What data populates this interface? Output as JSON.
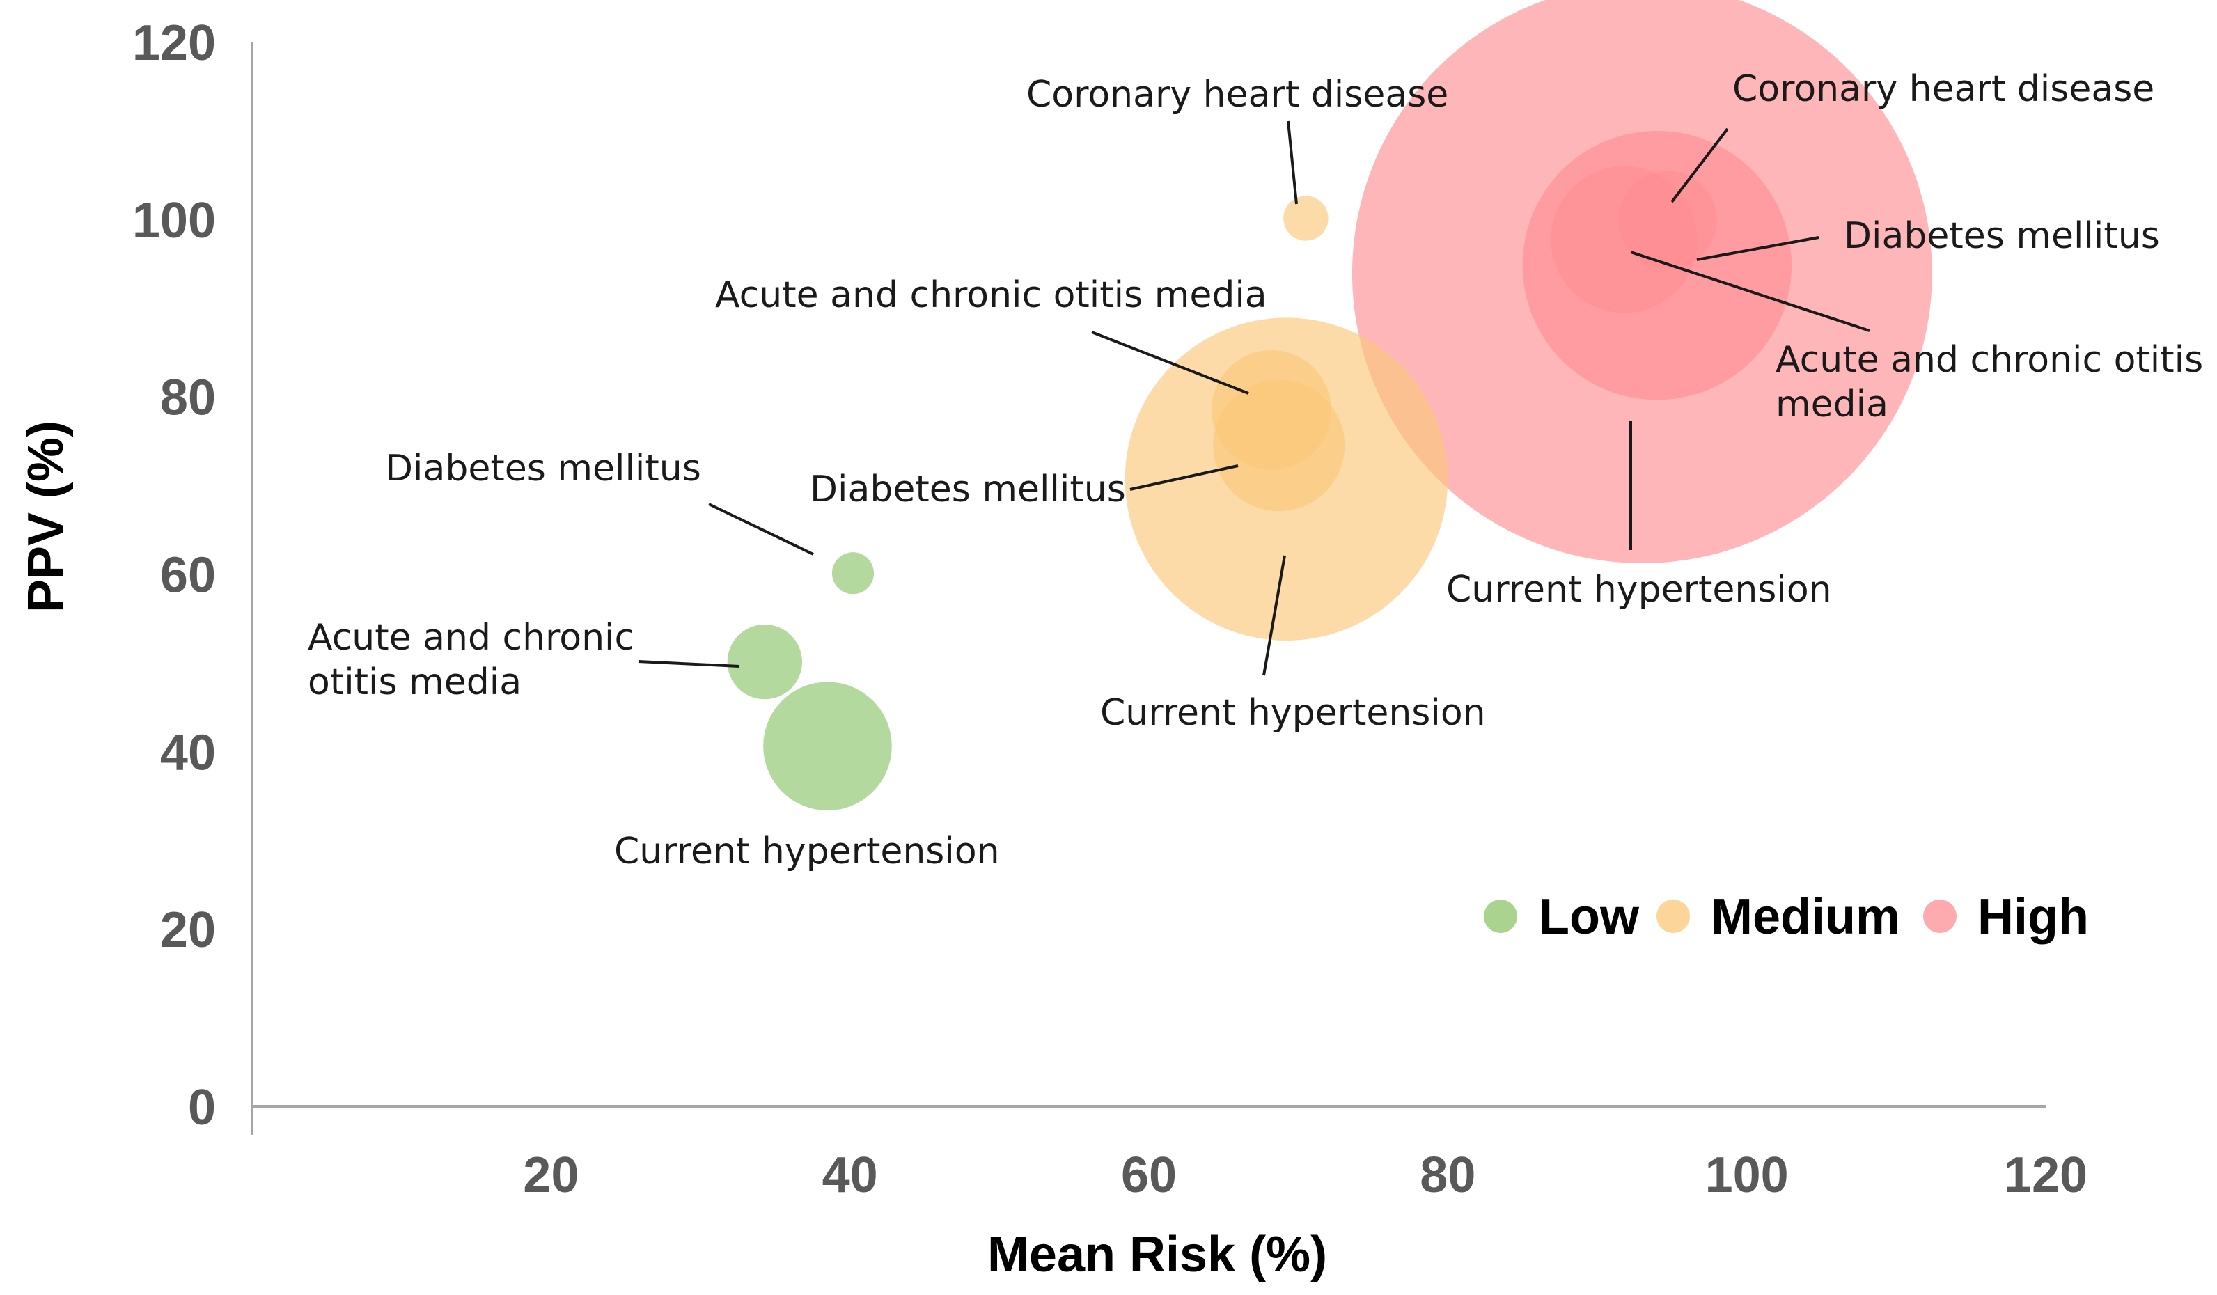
{
  "chart_data": {
    "type": "scatter",
    "subtype": "bubble",
    "title": "",
    "xlabel": "Mean Risk (%)",
    "ylabel": "PPV (%)",
    "xlim": [
      0,
      120
    ],
    "ylim": [
      0,
      120
    ],
    "x_ticks": [
      20,
      40,
      60,
      80,
      100,
      120
    ],
    "y_ticks": [
      0,
      20,
      40,
      60,
      80,
      100,
      120
    ],
    "grid": false,
    "legend_position": "bottom-right",
    "series": [
      {
        "name": "Low",
        "color": "#8cc46a",
        "points": [
          {
            "label": "Diabetes mellitus",
            "x": 40.2,
            "y": 60.1,
            "size": 1.4
          },
          {
            "label": "Acute and chronic otitis media",
            "x": 34.3,
            "y": 50.1,
            "size": 2.5
          },
          {
            "label": "Current hypertension",
            "x": 38.5,
            "y": 40.6,
            "size": 4.3
          }
        ]
      },
      {
        "name": "Medium",
        "color": "#fbc779",
        "points": [
          {
            "label": "Coronary heart disease",
            "x": 70.5,
            "y": 100.1,
            "size": 1.5
          },
          {
            "label": "Acute and chronic otitis media",
            "x": 68.2,
            "y": 78.5,
            "size": 4.0
          },
          {
            "label": "Diabetes mellitus",
            "x": 68.7,
            "y": 74.5,
            "size": 4.4
          },
          {
            "label": "Current hypertension",
            "x": 69.2,
            "y": 70.7,
            "size": 10.8
          }
        ]
      },
      {
        "name": "High",
        "color": "#fe8f94",
        "points": [
          {
            "label": "Coronary heart disease",
            "x": 94.7,
            "y": 99.9,
            "size": 3.3
          },
          {
            "label": "Diabetes mellitus",
            "x": 91.8,
            "y": 97.7,
            "size": 4.9
          },
          {
            "label": "Acute and chronic otitis media",
            "x": 94.0,
            "y": 94.8,
            "size": 9.0
          },
          {
            "label": "Current hypertension",
            "x": 93.0,
            "y": 93.9,
            "size": 19.4
          }
        ]
      }
    ],
    "annotations": [
      {
        "series": "Low",
        "point": "Diabetes mellitus",
        "lines": [
          "Diabetes mellitus"
        ]
      },
      {
        "series": "Low",
        "point": "Acute and chronic otitis media",
        "lines": [
          "Acute and chronic",
          "otitis media"
        ]
      },
      {
        "series": "Low",
        "point": "Current hypertension",
        "lines": [
          "Current hypertension"
        ]
      },
      {
        "series": "Medium",
        "point": "Coronary heart disease",
        "lines": [
          "Coronary heart disease"
        ]
      },
      {
        "series": "Medium",
        "point": "Acute and chronic otitis media",
        "lines": [
          "Acute and chronic otitis media"
        ]
      },
      {
        "series": "Medium",
        "point": "Diabetes mellitus",
        "lines": [
          "Diabetes mellitus"
        ]
      },
      {
        "series": "Medium",
        "point": "Current hypertension",
        "lines": [
          "Current hypertension"
        ]
      },
      {
        "series": "High",
        "point": "Coronary heart disease",
        "lines": [
          "Coronary heart disease"
        ]
      },
      {
        "series": "High",
        "point": "Diabetes mellitus",
        "lines": [
          "Diabetes  mellitus"
        ]
      },
      {
        "series": "High",
        "point": "Acute and chronic otitis media",
        "lines": [
          "Acute and chronic otitis",
          "media"
        ]
      },
      {
        "series": "High",
        "point": "Current hypertension",
        "lines": [
          "Current hypertension"
        ]
      }
    ]
  }
}
